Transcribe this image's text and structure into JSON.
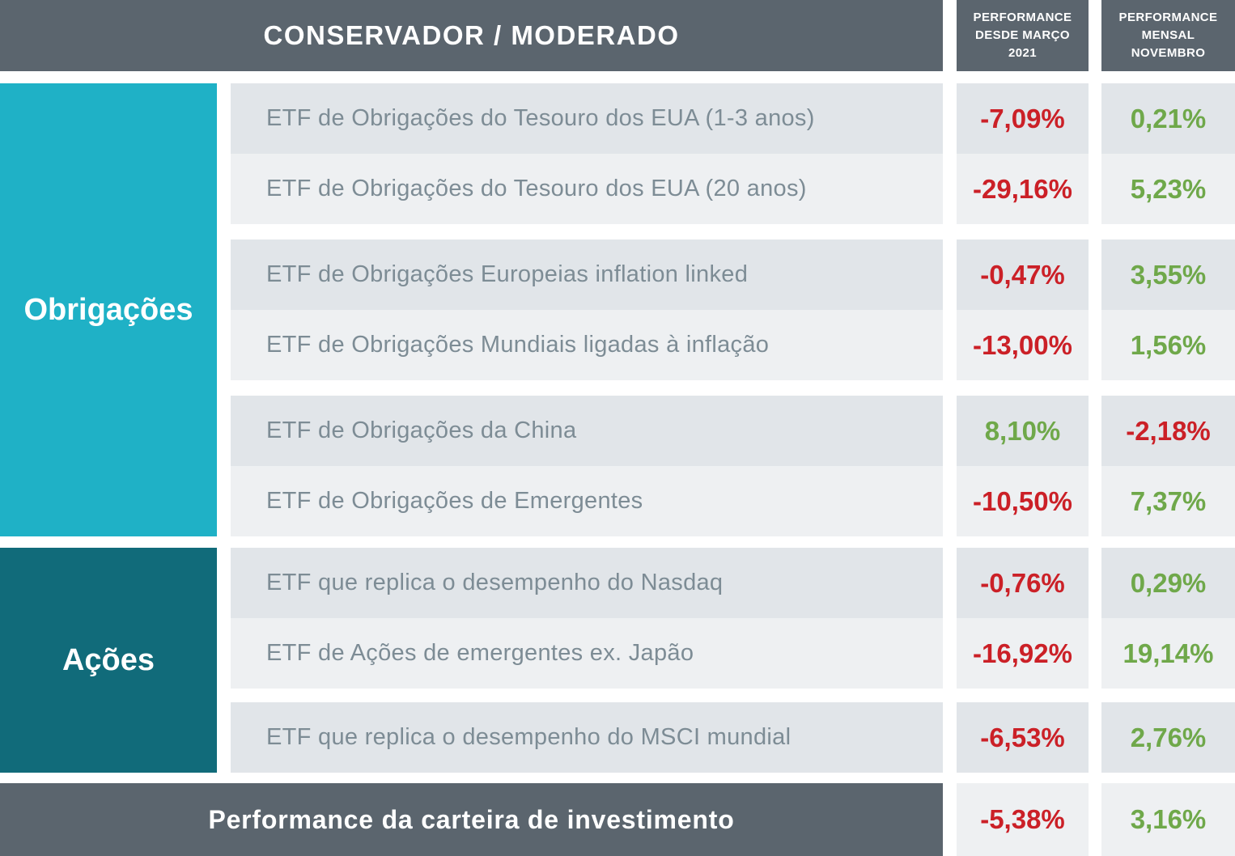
{
  "header": {
    "title": "CONSERVADOR / MODERADO",
    "columns": [
      "PERFORMANCE\nDESDE MARÇO\n2021",
      "PERFORMANCE\nMENSAL\nNOVEMBRO"
    ]
  },
  "categories": [
    {
      "label": "Obrigações",
      "color": "#1fb1c6"
    },
    {
      "label": "Ações",
      "color": "#116b7a"
    }
  ],
  "rows": [
    {
      "name": "ETF de Obrigações do Tesouro dos EUA (1-3 anos)",
      "since": "-7,09%",
      "monthly": "0,21%"
    },
    {
      "name": "ETF de Obrigações do Tesouro dos EUA (20 anos)",
      "since": "-29,16%",
      "monthly": "5,23%"
    },
    {
      "name": "ETF de Obrigações Europeias inflation linked",
      "since": "-0,47%",
      "monthly": "3,55%"
    },
    {
      "name": "ETF de Obrigações Mundiais ligadas à inflação",
      "since": "-13,00%",
      "monthly": "1,56%"
    },
    {
      "name": "ETF de Obrigações da China",
      "since": "8,10%",
      "monthly": "-2,18%"
    },
    {
      "name": "ETF de Obrigações de Emergentes",
      "since": "-10,50%",
      "monthly": "7,37%"
    },
    {
      "name": "ETF que replica o desempenho do Nasdaq",
      "since": "-0,76%",
      "monthly": "0,29%"
    },
    {
      "name": "ETF de Ações de emergentes ex. Japão",
      "since": "-16,92%",
      "monthly": "19,14%"
    },
    {
      "name": "ETF que replica o desempenho do MSCI mundial",
      "since": "-6,53%",
      "monthly": "2,76%"
    }
  ],
  "footer": {
    "label": "Performance da carteira de investimento",
    "since": "-5,38%",
    "monthly": "3,16%"
  },
  "colors": {
    "header_bg": "#5b656e",
    "bonds_bg": "#1fb1c6",
    "stocks_bg": "#116b7a",
    "row_dark_bg": "#e1e5e9",
    "row_light_bg": "#eef0f2",
    "negative": "#cb2027",
    "positive": "#6fa84a",
    "row_text": "#7d8c95"
  },
  "chart_data": {
    "type": "table",
    "title": "CONSERVADOR / MODERADO",
    "column_headers": [
      "PERFORMANCE DESDE MARÇO 2021",
      "PERFORMANCE MENSAL NOVEMBRO"
    ],
    "rows": [
      {
        "category": "Obrigações",
        "name": "ETF de Obrigações do Tesouro dos EUA (1-3 anos)",
        "since_marco_2021_pct": -7.09,
        "mensal_novembro_pct": 0.21
      },
      {
        "category": "Obrigações",
        "name": "ETF de Obrigações do Tesouro dos EUA (20 anos)",
        "since_marco_2021_pct": -29.16,
        "mensal_novembro_pct": 5.23
      },
      {
        "category": "Obrigações",
        "name": "ETF de Obrigações Europeias inflation linked",
        "since_marco_2021_pct": -0.47,
        "mensal_novembro_pct": 3.55
      },
      {
        "category": "Obrigações",
        "name": "ETF de Obrigações Mundiais ligadas à inflação",
        "since_marco_2021_pct": -13.0,
        "mensal_novembro_pct": 1.56
      },
      {
        "category": "Obrigações",
        "name": "ETF de Obrigações da China",
        "since_marco_2021_pct": 8.1,
        "mensal_novembro_pct": -2.18
      },
      {
        "category": "Obrigações",
        "name": "ETF de Obrigações de Emergentes",
        "since_marco_2021_pct": -10.5,
        "mensal_novembro_pct": 7.37
      },
      {
        "category": "Ações",
        "name": "ETF que replica o desempenho do Nasdaq",
        "since_marco_2021_pct": -0.76,
        "mensal_novembro_pct": 0.29
      },
      {
        "category": "Ações",
        "name": "ETF de Ações de emergentes ex. Japão",
        "since_marco_2021_pct": -16.92,
        "mensal_novembro_pct": 19.14
      },
      {
        "category": "Ações",
        "name": "ETF que replica o desempenho do MSCI mundial",
        "since_marco_2021_pct": -6.53,
        "mensal_novembro_pct": 2.76
      }
    ],
    "footer": {
      "name": "Performance da carteira de investimento",
      "since_marco_2021_pct": -5.38,
      "mensal_novembro_pct": 3.16
    }
  }
}
